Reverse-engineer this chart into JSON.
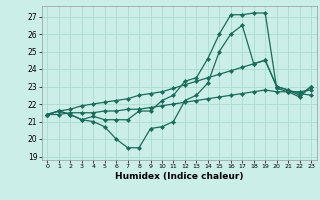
{
  "title": "",
  "xlabel": "Humidex (Indice chaleur)",
  "bg_color": "#cceee8",
  "grid_color": "#aaddcc",
  "line_color": "#1a6b5a",
  "xlim": [
    -0.5,
    23.5
  ],
  "ylim": [
    18.8,
    27.6
  ],
  "yticks": [
    19,
    20,
    21,
    22,
    23,
    24,
    25,
    26,
    27
  ],
  "xticks": [
    0,
    1,
    2,
    3,
    4,
    5,
    6,
    7,
    8,
    9,
    10,
    11,
    12,
    13,
    14,
    15,
    16,
    17,
    18,
    19,
    20,
    21,
    22,
    23
  ],
  "series": [
    [
      21.4,
      21.6,
      21.4,
      21.1,
      21.0,
      20.7,
      20.0,
      19.5,
      19.5,
      20.6,
      20.7,
      21.0,
      22.2,
      22.5,
      23.2,
      25.0,
      26.0,
      26.5,
      24.3,
      24.5,
      23.0,
      22.8,
      22.5,
      23.0
    ],
    [
      21.4,
      21.6,
      21.7,
      21.9,
      22.0,
      22.1,
      22.2,
      22.3,
      22.5,
      22.6,
      22.7,
      22.9,
      23.1,
      23.3,
      23.5,
      23.7,
      23.9,
      24.1,
      24.3,
      24.5,
      23.0,
      22.8,
      22.6,
      22.5
    ],
    [
      21.4,
      21.4,
      21.5,
      21.5,
      21.5,
      21.6,
      21.6,
      21.7,
      21.7,
      21.8,
      21.9,
      22.0,
      22.1,
      22.2,
      22.3,
      22.4,
      22.5,
      22.6,
      22.7,
      22.8,
      22.7,
      22.7,
      22.7,
      22.8
    ],
    [
      21.4,
      21.6,
      21.4,
      21.1,
      21.3,
      21.1,
      21.1,
      21.1,
      21.6,
      21.6,
      22.2,
      22.5,
      23.3,
      23.5,
      24.6,
      26.0,
      27.1,
      27.1,
      27.2,
      27.2,
      22.9,
      22.7,
      22.4,
      23.0
    ]
  ]
}
